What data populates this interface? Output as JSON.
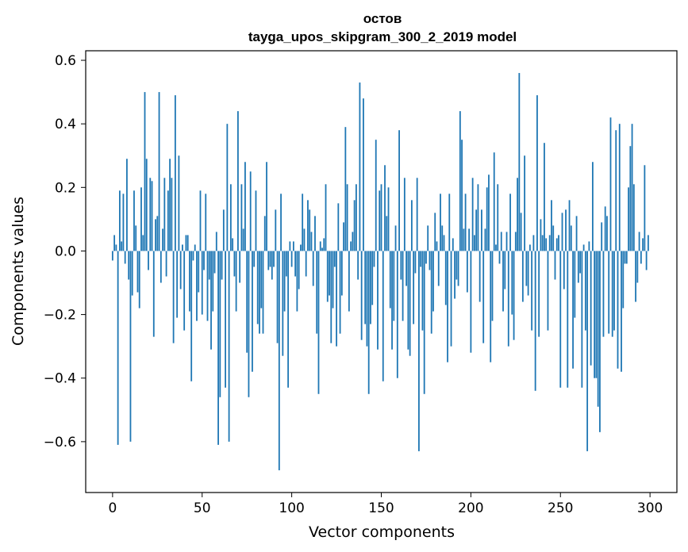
{
  "chart_data": {
    "type": "bar",
    "title": "остов",
    "subtitle": "tayga_upos_skipgram_300_2_2019 model",
    "xlabel": "Vector components",
    "ylabel": "Components values",
    "xlim": [
      -15,
      315
    ],
    "ylim": [
      -0.76,
      0.63
    ],
    "xticks": [
      0,
      50,
      100,
      150,
      200,
      250,
      300
    ],
    "yticks": [
      -0.6,
      -0.4,
      -0.2,
      0.0,
      0.2,
      0.4,
      0.6
    ],
    "xtick_labels": [
      "0",
      "50",
      "100",
      "150",
      "200",
      "250",
      "300"
    ],
    "ytick_labels": [
      "−0.6",
      "−0.4",
      "−0.2",
      "0.0",
      "0.2",
      "0.4",
      "0.6"
    ],
    "bar_color": "#1f77b4",
    "grid": false,
    "values": [
      -0.03,
      0.05,
      0.02,
      -0.61,
      0.19,
      0.03,
      0.18,
      -0.04,
      0.29,
      -0.09,
      -0.6,
      -0.14,
      0.19,
      0.08,
      -0.13,
      -0.18,
      0.2,
      0.05,
      0.5,
      0.29,
      -0.06,
      0.23,
      0.22,
      -0.27,
      0.1,
      0.11,
      0.5,
      -0.1,
      0.07,
      0.23,
      -0.08,
      0.19,
      0.29,
      0.23,
      -0.29,
      0.49,
      -0.21,
      0.3,
      -0.12,
      0.02,
      -0.25,
      0.05,
      0.05,
      -0.19,
      -0.41,
      -0.03,
      0.02,
      -0.22,
      -0.13,
      0.19,
      -0.2,
      -0.06,
      0.18,
      -0.22,
      -0.09,
      -0.31,
      -0.19,
      -0.07,
      0.06,
      -0.61,
      -0.46,
      -0.09,
      0.13,
      -0.43,
      0.4,
      -0.6,
      0.21,
      0.04,
      -0.08,
      -0.19,
      0.44,
      -0.1,
      0.21,
      0.07,
      0.28,
      -0.32,
      -0.46,
      0.25,
      -0.38,
      -0.05,
      0.19,
      -0.23,
      -0.26,
      -0.18,
      -0.26,
      0.11,
      0.28,
      -0.06,
      -0.05,
      -0.09,
      -0.05,
      0.13,
      -0.29,
      -0.69,
      0.18,
      -0.33,
      -0.19,
      -0.08,
      -0.43,
      0.03,
      -0.05,
      0.03,
      -0.08,
      -0.19,
      -0.12,
      0.02,
      0.18,
      0.07,
      -0.08,
      0.16,
      0.13,
      0.06,
      -0.11,
      0.11,
      -0.26,
      -0.45,
      0.03,
      0.01,
      0.04,
      0.21,
      -0.16,
      -0.14,
      -0.29,
      -0.18,
      -0.05,
      -0.3,
      0.15,
      -0.26,
      -0.14,
      0.09,
      0.39,
      0.21,
      -0.19,
      0.03,
      0.06,
      0.16,
      0.21,
      -0.09,
      0.53,
      -0.28,
      0.48,
      -0.23,
      -0.3,
      -0.45,
      -0.23,
      -0.17,
      -0.05,
      0.35,
      -0.31,
      0.19,
      0.21,
      -0.41,
      0.27,
      0.11,
      0.2,
      -0.18,
      -0.31,
      -0.22,
      0.08,
      -0.4,
      0.38,
      -0.09,
      -0.22,
      0.23,
      -0.11,
      -0.31,
      -0.33,
      0.16,
      -0.23,
      -0.07,
      0.23,
      -0.63,
      -0.05,
      -0.25,
      -0.45,
      -0.04,
      0.08,
      -0.06,
      -0.26,
      -0.19,
      0.12,
      0.03,
      -0.11,
      0.18,
      0.08,
      0.05,
      -0.17,
      -0.35,
      0.18,
      -0.3,
      0.04,
      -0.15,
      -0.09,
      -0.11,
      0.44,
      0.35,
      0.07,
      0.18,
      -0.13,
      0.07,
      -0.32,
      0.23,
      0.05,
      0.13,
      0.21,
      -0.16,
      0.13,
      -0.29,
      0.07,
      0.2,
      0.24,
      -0.35,
      -0.22,
      0.31,
      0.02,
      0.21,
      -0.04,
      0.06,
      -0.19,
      -0.12,
      0.06,
      -0.3,
      0.18,
      -0.2,
      -0.28,
      0.06,
      0.23,
      0.56,
      0.12,
      -0.16,
      0.3,
      -0.11,
      -0.14,
      0.02,
      -0.25,
      0.05,
      -0.44,
      0.49,
      -0.27,
      0.1,
      0.05,
      0.34,
      0.04,
      -0.25,
      0.05,
      0.16,
      0.08,
      -0.09,
      0.04,
      0.05,
      -0.43,
      0.12,
      -0.12,
      0.13,
      -0.43,
      0.16,
      0.08,
      -0.37,
      -0.21,
      0.11,
      -0.1,
      -0.07,
      -0.43,
      0.02,
      -0.25,
      -0.63,
      0.03,
      -0.36,
      0.28,
      -0.4,
      -0.4,
      -0.49,
      -0.57,
      0.09,
      -0.27,
      0.14,
      0.11,
      -0.26,
      0.42,
      -0.27,
      -0.25,
      0.38,
      -0.37,
      0.4,
      -0.38,
      -0.18,
      -0.04,
      -0.04,
      0.2,
      0.33,
      0.4,
      0.21,
      -0.16,
      -0.1,
      0.06,
      -0.04,
      0.04,
      0.27,
      -0.06,
      0.05
    ]
  }
}
